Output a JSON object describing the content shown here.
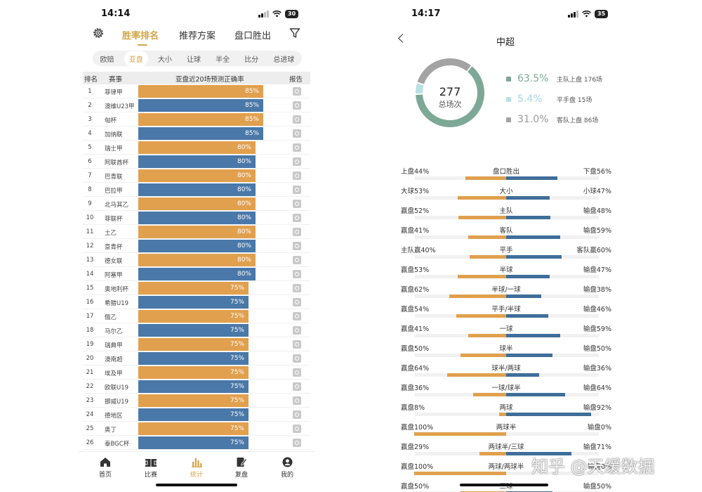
{
  "left_phone": {
    "status": {
      "time": "14:14",
      "battery": "30"
    },
    "top_nav": {
      "tabs": [
        "胜率排名",
        "推荐方案",
        "盘口胜出"
      ],
      "active": 0
    },
    "sub_tabs": {
      "items": [
        "欧赔",
        "亚盘",
        "大小",
        "让球",
        "半全",
        "比分",
        "总进球"
      ],
      "active": 1
    },
    "table": {
      "headers": {
        "rank": "排名",
        "league": "赛事",
        "metric": "亚盘近20场预测正确率",
        "report": "报告"
      },
      "rows": [
        {
          "rank": "1",
          "league": "菲律甲",
          "value": 85,
          "label": "85%"
        },
        {
          "rank": "2",
          "league": "澳维U23甲",
          "value": 85,
          "label": "85%"
        },
        {
          "rank": "3",
          "league": "匈杯",
          "value": 85,
          "label": "85%"
        },
        {
          "rank": "4",
          "league": "加纳联",
          "value": 85,
          "label": "85%"
        },
        {
          "rank": "5",
          "league": "瑞士甲",
          "value": 80,
          "label": "80%"
        },
        {
          "rank": "6",
          "league": "阿联酋杯",
          "value": 80,
          "label": "80%"
        },
        {
          "rank": "7",
          "league": "巴青联",
          "value": 80,
          "label": "80%"
        },
        {
          "rank": "8",
          "league": "巴拉甲",
          "value": 80,
          "label": "80%"
        },
        {
          "rank": "9",
          "league": "北马其乙",
          "value": 80,
          "label": "80%"
        },
        {
          "rank": "10",
          "league": "菲联杯",
          "value": 80,
          "label": "80%"
        },
        {
          "rank": "11",
          "league": "土乙",
          "value": 80,
          "label": "80%"
        },
        {
          "rank": "12",
          "league": "意青杯",
          "value": 80,
          "label": "80%"
        },
        {
          "rank": "13",
          "league": "德女联",
          "value": 80,
          "label": "80%"
        },
        {
          "rank": "14",
          "league": "阿塞甲",
          "value": 80,
          "label": "80%"
        },
        {
          "rank": "15",
          "league": "奥地利杯",
          "value": 75,
          "label": "75%"
        },
        {
          "rank": "16",
          "league": "希腊U19",
          "value": 75,
          "label": "75%"
        },
        {
          "rank": "17",
          "league": "俄乙",
          "value": 75,
          "label": "75%"
        },
        {
          "rank": "18",
          "league": "马尔乙",
          "value": 75,
          "label": "75%"
        },
        {
          "rank": "19",
          "league": "瑞典甲",
          "value": 75,
          "label": "75%"
        },
        {
          "rank": "20",
          "league": "澳南超",
          "value": 75,
          "label": "75%"
        },
        {
          "rank": "21",
          "league": "埃及甲",
          "value": 75,
          "label": "75%"
        },
        {
          "rank": "22",
          "league": "欧联U19",
          "value": 75,
          "label": "75%"
        },
        {
          "rank": "23",
          "league": "挪威U19",
          "value": 75,
          "label": "75%"
        },
        {
          "rank": "24",
          "league": "德地区",
          "value": 75,
          "label": "75%"
        },
        {
          "rank": "25",
          "league": "奥丁",
          "value": 75,
          "label": "75%"
        },
        {
          "rank": "26",
          "league": "泰BGC杯",
          "value": 75,
          "label": "75%"
        }
      ]
    },
    "bottom_nav": {
      "items": [
        "首页",
        "比赛",
        "统计",
        "复盘",
        "我的"
      ],
      "active": 2
    },
    "colors": {
      "orange": "#e1a04e",
      "blue": "#4a78a8",
      "gold": "#d4a54a"
    }
  },
  "right_phone": {
    "status": {
      "time": "14:17",
      "battery": "35"
    },
    "title": "中超",
    "donut": {
      "total": "277",
      "total_label": "总场次",
      "segments": [
        {
          "pct": "63.5%",
          "label": "主队上盘 176场",
          "value": 63.5,
          "color": "#7da896"
        },
        {
          "pct": "5.4%",
          "label": "平手盘 15场",
          "value": 5.4,
          "color": "#b9e0e4"
        },
        {
          "pct": "31.0%",
          "label": "客队上盘 86场",
          "value": 31.0,
          "color": "#a3a3a3"
        }
      ]
    },
    "stats": [
      {
        "left": "上盘44%",
        "center": "盘口胜出",
        "right": "下盘56%",
        "lv": 44,
        "rv": 56
      },
      {
        "left": "大球53%",
        "center": "大小",
        "right": "小球47%",
        "lv": 53,
        "rv": 47
      },
      {
        "left": "赢盘52%",
        "center": "主队",
        "right": "输盘48%",
        "lv": 52,
        "rv": 48
      },
      {
        "left": "赢盘41%",
        "center": "客队",
        "right": "输盘59%",
        "lv": 41,
        "rv": 59
      },
      {
        "left": "主队赢40%",
        "center": "平手",
        "right": "客队赢60%",
        "lv": 40,
        "rv": 60
      },
      {
        "left": "赢盘53%",
        "center": "半球",
        "right": "输盘47%",
        "lv": 53,
        "rv": 47
      },
      {
        "left": "赢盘62%",
        "center": "半球/一球",
        "right": "输盘38%",
        "lv": 62,
        "rv": 38
      },
      {
        "left": "赢盘54%",
        "center": "平手/半球",
        "right": "输盘46%",
        "lv": 54,
        "rv": 46
      },
      {
        "left": "赢盘41%",
        "center": "一球",
        "right": "输盘59%",
        "lv": 41,
        "rv": 59
      },
      {
        "left": "赢盘50%",
        "center": "球半",
        "right": "输盘50%",
        "lv": 50,
        "rv": 50
      },
      {
        "left": "赢盘64%",
        "center": "球半/两球",
        "right": "输盘36%",
        "lv": 64,
        "rv": 36
      },
      {
        "left": "赢盘36%",
        "center": "一球/球半",
        "right": "输盘64%",
        "lv": 36,
        "rv": 64
      },
      {
        "left": "赢盘8%",
        "center": "两球",
        "right": "输盘92%",
        "lv": 8,
        "rv": 92
      },
      {
        "left": "赢盘100%",
        "center": "两球半",
        "right": "输盘0%",
        "lv": 100,
        "rv": 0
      },
      {
        "left": "赢盘29%",
        "center": "两球半/三球",
        "right": "输盘71%",
        "lv": 29,
        "rv": 71
      },
      {
        "left": "赢盘100%",
        "center": "两球/两球半",
        "right": "输盘0%",
        "lv": 100,
        "rv": 0
      },
      {
        "left": "赢盘50%",
        "center": "三球",
        "right": "输盘50%",
        "lv": 50,
        "rv": 50
      }
    ]
  },
  "watermark": "知乎 @天缓数据"
}
